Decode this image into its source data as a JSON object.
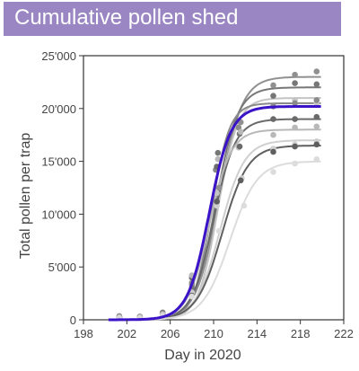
{
  "header": {
    "title": "Cumulative pollen shed",
    "color": "#9a86c2"
  },
  "chart_data": {
    "type": "scatter",
    "xlabel": "Day in 2020",
    "ylabel": "Total pollen per trap",
    "xlim": [
      198,
      222
    ],
    "ylim": [
      0,
      25000
    ],
    "x_ticks": [
      198,
      202,
      206,
      210,
      214,
      218,
      222
    ],
    "x_tick_labels": [
      "198",
      "202",
      "206",
      "210",
      "214",
      "218",
      "222"
    ],
    "y_ticks": [
      0,
      5000,
      10000,
      15000,
      20000,
      25000
    ],
    "y_tick_labels": [
      "0",
      "5'000",
      "10'000",
      "15'000",
      "20'000",
      "25'000"
    ],
    "grid": false,
    "mean_curve": {
      "color": "#3a12c8",
      "max": 20200,
      "midpoint": 209.6,
      "steepness": 1.0,
      "x_range": [
        200.3,
        219.9
      ]
    },
    "series": [
      {
        "max": 23000,
        "midpoint": 210.5,
        "steepness": 0.95,
        "color": "#909090",
        "points": [
          [
            201.3,
            350
          ],
          [
            203.2,
            300
          ],
          [
            205.3,
            700
          ],
          [
            208.0,
            3300
          ],
          [
            210.5,
            12500
          ],
          [
            212.5,
            18700
          ],
          [
            215.5,
            22200
          ],
          [
            217.5,
            23200
          ],
          [
            219.5,
            23500
          ]
        ]
      },
      {
        "max": 22000,
        "midpoint": 210.2,
        "steepness": 1.0,
        "color": "#777777",
        "points": [
          [
            201.3,
            300
          ],
          [
            203.2,
            250
          ],
          [
            205.3,
            650
          ],
          [
            208.0,
            3000
          ],
          [
            210.4,
            15800
          ],
          [
            212.4,
            17600
          ],
          [
            215.5,
            21200
          ],
          [
            217.5,
            22400
          ],
          [
            219.5,
            22300
          ]
        ]
      },
      {
        "max": 21000,
        "midpoint": 210.4,
        "steepness": 1.1,
        "color": "#c4c4c4",
        "points": [
          [
            201.3,
            250
          ],
          [
            203.2,
            250
          ],
          [
            205.3,
            500
          ],
          [
            208.0,
            2600
          ],
          [
            210.3,
            12000
          ],
          [
            212.3,
            16300
          ],
          [
            215.5,
            20200
          ],
          [
            217.5,
            20800
          ],
          [
            219.5,
            20500
          ]
        ]
      },
      {
        "max": 20500,
        "midpoint": 209.8,
        "steepness": 1.2,
        "color": "#8a8a8a",
        "points": [
          [
            201.3,
            200
          ],
          [
            203.2,
            200
          ],
          [
            205.3,
            600
          ],
          [
            208.0,
            3500
          ],
          [
            210.2,
            14200
          ],
          [
            212.3,
            18200
          ],
          [
            215.5,
            20200
          ],
          [
            217.5,
            20500
          ],
          [
            219.5,
            20800
          ]
        ]
      },
      {
        "max": 19000,
        "midpoint": 210.0,
        "steepness": 1.0,
        "color": "#6a6a6a",
        "points": [
          [
            201.3,
            300
          ],
          [
            203.2,
            300
          ],
          [
            205.3,
            600
          ],
          [
            208.0,
            4000
          ],
          [
            210.3,
            14500
          ],
          [
            212.4,
            16400
          ],
          [
            215.5,
            19000
          ],
          [
            217.5,
            19000
          ],
          [
            219.5,
            19200
          ]
        ]
      },
      {
        "max": 18000,
        "midpoint": 209.6,
        "steepness": 1.0,
        "color": "#b8b8b8",
        "points": [
          [
            201.3,
            250
          ],
          [
            203.2,
            250
          ],
          [
            205.3,
            550
          ],
          [
            208.0,
            4200
          ],
          [
            210.4,
            15200
          ],
          [
            212.5,
            17800
          ],
          [
            215.5,
            17500
          ],
          [
            217.5,
            18200
          ],
          [
            219.5,
            18300
          ]
        ]
      },
      {
        "max": 17000,
        "midpoint": 210.6,
        "steepness": 0.9,
        "color": "#cfcfcf",
        "points": [
          [
            201.3,
            200
          ],
          [
            203.2,
            200
          ],
          [
            205.3,
            450
          ],
          [
            208.0,
            2500
          ],
          [
            210.3,
            10800
          ],
          [
            212.6,
            13400
          ],
          [
            215.5,
            16200
          ],
          [
            217.5,
            16600
          ],
          [
            219.5,
            16900
          ]
        ]
      },
      {
        "max": 16500,
        "midpoint": 210.8,
        "steepness": 0.85,
        "color": "#5f5f5f",
        "points": [
          [
            201.3,
            150
          ],
          [
            203.2,
            150
          ],
          [
            205.3,
            400
          ],
          [
            208.0,
            2300
          ],
          [
            210.3,
            11200
          ],
          [
            212.5,
            13200
          ],
          [
            215.5,
            15900
          ],
          [
            217.5,
            16400
          ],
          [
            219.5,
            16600
          ]
        ]
      },
      {
        "max": 15000,
        "midpoint": 211.5,
        "steepness": 0.8,
        "color": "#dcdcdc",
        "points": [
          [
            201.3,
            150
          ],
          [
            203.2,
            150
          ],
          [
            205.3,
            400
          ],
          [
            208.0,
            2200
          ],
          [
            210.5,
            8400
          ],
          [
            212.8,
            10800
          ],
          [
            215.5,
            14000
          ],
          [
            217.5,
            14800
          ],
          [
            219.5,
            15200
          ]
        ]
      }
    ]
  }
}
